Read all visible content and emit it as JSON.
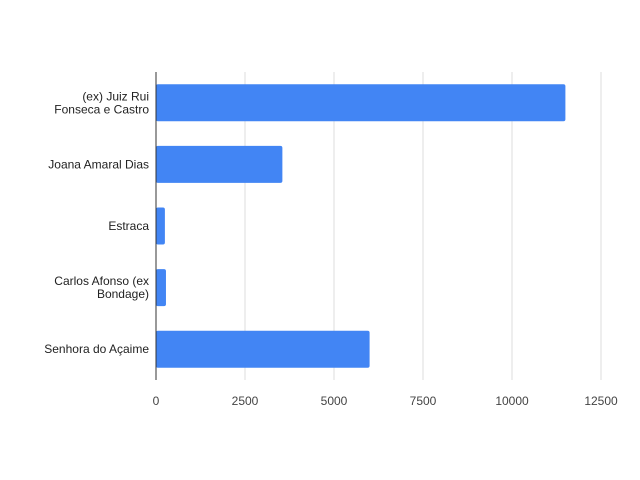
{
  "chart_data": {
    "type": "bar",
    "orientation": "horizontal",
    "title": "",
    "xlabel": "",
    "ylabel": "",
    "categories": [
      [
        "(ex) Juiz Rui",
        "Fonseca e Castro"
      ],
      [
        "Joana Amaral Dias"
      ],
      [
        "Estraca"
      ],
      [
        "Carlos Afonso (ex",
        "Bondage)"
      ],
      [
        "Senhora do Açaime"
      ]
    ],
    "values": [
      11500,
      3550,
      250,
      280,
      6000
    ],
    "xlim": [
      0,
      12500
    ],
    "xticks": [
      "0",
      "2500",
      "5000",
      "7500",
      "10000",
      "12500"
    ],
    "xtick_values": [
      0,
      2500,
      5000,
      7500,
      10000,
      12500
    ],
    "grid": true,
    "bar_color": "#4285f4"
  }
}
